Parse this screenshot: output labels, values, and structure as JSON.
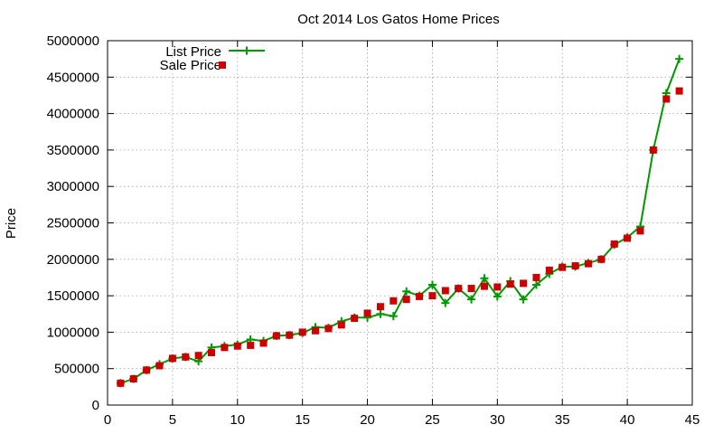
{
  "chart_data": {
    "type": "line",
    "title": "Oct 2014 Los Gatos Home Prices",
    "xlabel": "",
    "ylabel": "Price",
    "xlim": [
      0,
      45
    ],
    "ylim": [
      0,
      5000000
    ],
    "x_ticks": [
      "0",
      "5",
      "10",
      "15",
      "20",
      "25",
      "30",
      "35",
      "40",
      "45"
    ],
    "y_ticks": [
      "0",
      "500000",
      "1000000",
      "1500000",
      "2000000",
      "2500000",
      "3000000",
      "3500000",
      "4000000",
      "4500000",
      "5000000"
    ],
    "grid": true,
    "legend_position": "top-left",
    "x": [
      1,
      2,
      3,
      4,
      5,
      6,
      7,
      8,
      9,
      10,
      11,
      12,
      13,
      14,
      15,
      16,
      17,
      18,
      19,
      20,
      21,
      22,
      23,
      24,
      25,
      26,
      27,
      28,
      29,
      30,
      31,
      32,
      33,
      34,
      35,
      36,
      37,
      38,
      39,
      40,
      41,
      42,
      43,
      44
    ],
    "series": [
      {
        "name": "List Price",
        "style": "linespoints",
        "color": "#009900",
        "marker": "plus",
        "values": [
          300000,
          360000,
          480000,
          560000,
          640000,
          660000,
          600000,
          790000,
          810000,
          830000,
          900000,
          880000,
          950000,
          960000,
          990000,
          1070000,
          1060000,
          1150000,
          1200000,
          1200000,
          1250000,
          1220000,
          1560000,
          1500000,
          1650000,
          1400000,
          1600000,
          1450000,
          1740000,
          1490000,
          1700000,
          1450000,
          1650000,
          1800000,
          1900000,
          1900000,
          1950000,
          2000000,
          2200000,
          2300000,
          2450000,
          3500000,
          4280000,
          4750000
        ]
      },
      {
        "name": "Sale Price",
        "style": "points",
        "color": "#cc0000",
        "marker": "square",
        "values": [
          300000,
          360000,
          480000,
          540000,
          640000,
          660000,
          680000,
          720000,
          790000,
          810000,
          820000,
          850000,
          950000,
          960000,
          1000000,
          1020000,
          1050000,
          1100000,
          1190000,
          1260000,
          1350000,
          1430000,
          1450000,
          1490000,
          1500000,
          1570000,
          1600000,
          1600000,
          1630000,
          1620000,
          1660000,
          1670000,
          1750000,
          1850000,
          1890000,
          1910000,
          1940000,
          2000000,
          2210000,
          2290000,
          2390000,
          3500000,
          4200000,
          4310000
        ]
      }
    ]
  }
}
